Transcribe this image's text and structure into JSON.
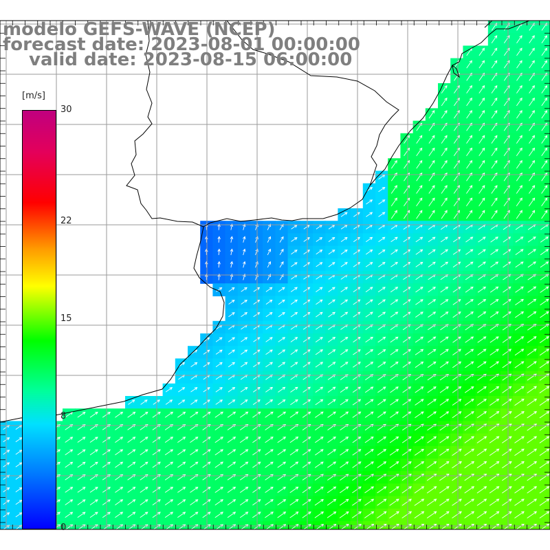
{
  "title": {
    "line1": "modelo GEFS-WAVE (NCEP)",
    "line2": "forecast date: 2023-08-01 00:00:00",
    "line3": "valid date: 2023-08-15 06:00:00"
  },
  "colorbar": {
    "unit": "[m/s]",
    "ticks": [
      {
        "label": "30",
        "value": 30
      },
      {
        "label": "22",
        "value": 22
      },
      {
        "label": "15",
        "value": 15
      },
      {
        "label": "8",
        "value": 8
      },
      {
        "label": "0",
        "value": 0
      }
    ],
    "range": [
      0,
      30
    ],
    "colormap": [
      "#0000ff",
      "#0078ff",
      "#00e0ff",
      "#00ff9a",
      "#00ff00",
      "#9cff00",
      "#ffff00",
      "#ff9a00",
      "#ff0000",
      "#e4005a",
      "#c0007f"
    ]
  },
  "colors": {
    "grid": "#9a9a9a",
    "coast": "#000000",
    "arrow": "#ffffff",
    "title_text": "#7f7f7f"
  },
  "map": {
    "field": "wind speed and direction",
    "grid_lines": true,
    "region": "Rio de la Plata and southern Brazil coast"
  }
}
